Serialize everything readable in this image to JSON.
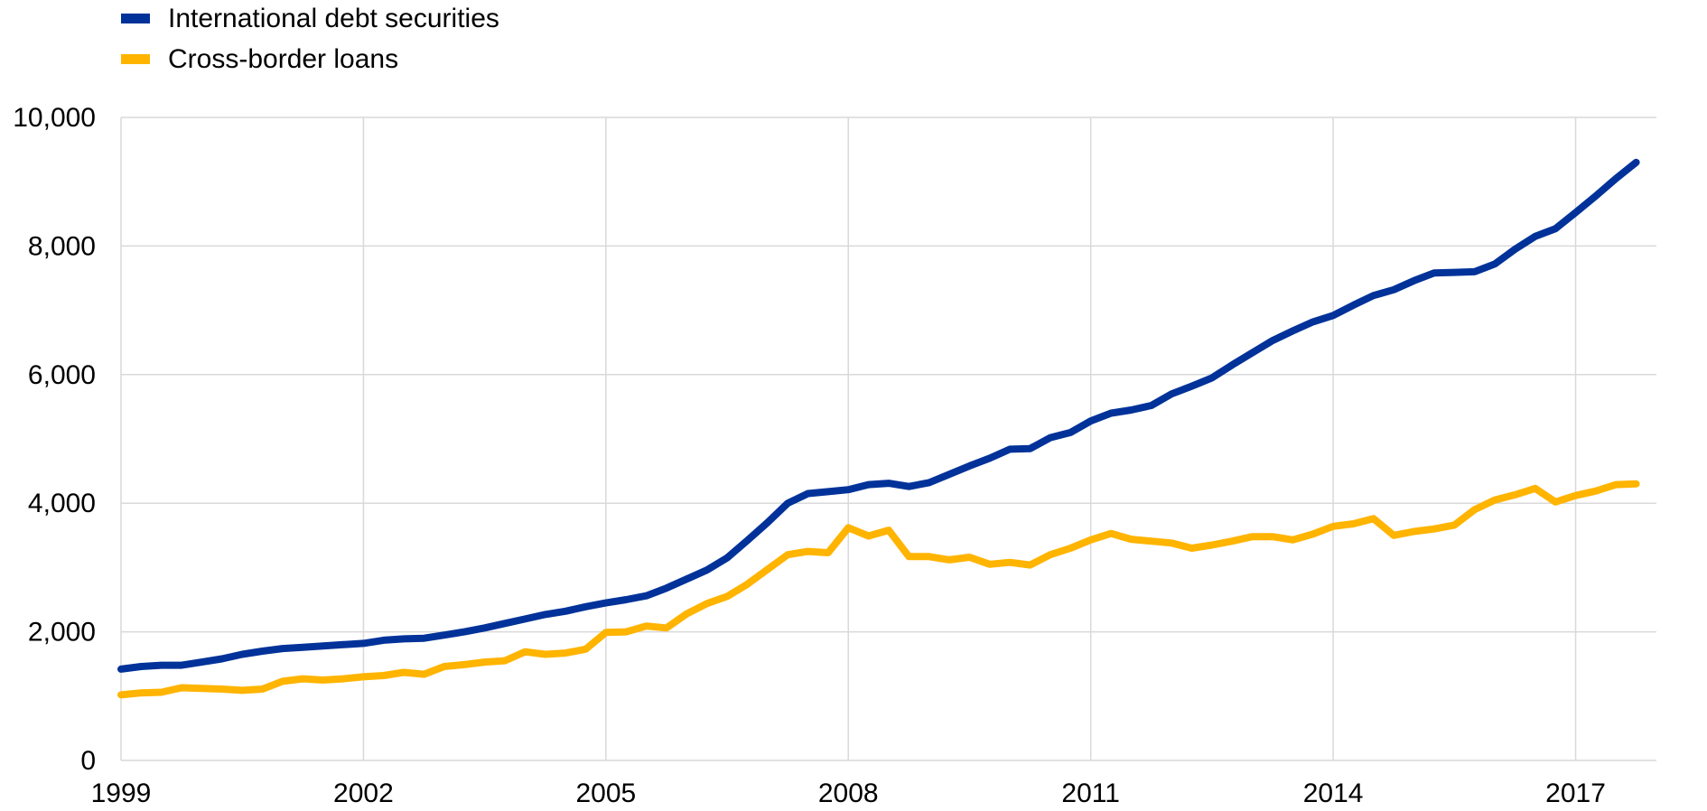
{
  "chart_data": {
    "type": "line",
    "title": "",
    "xlabel": "",
    "ylabel": "",
    "ylim": [
      0,
      10000
    ],
    "xlim": [
      1999,
      2018
    ],
    "yticks": [
      {
        "value": 0,
        "label": "0"
      },
      {
        "value": 2000,
        "label": "2,000"
      },
      {
        "value": 4000,
        "label": "4,000"
      },
      {
        "value": 6000,
        "label": "6,000"
      },
      {
        "value": 8000,
        "label": "8,000"
      },
      {
        "value": 10000,
        "label": "10,000"
      }
    ],
    "xticks": [
      {
        "value": 1999,
        "label": "1999"
      },
      {
        "value": 2002,
        "label": "2002"
      },
      {
        "value": 2005,
        "label": "2005"
      },
      {
        "value": 2008,
        "label": "2008"
      },
      {
        "value": 2011,
        "label": "2011"
      },
      {
        "value": 2014,
        "label": "2014"
      },
      {
        "value": 2017,
        "label": "2017"
      }
    ],
    "grid": true,
    "legend_position": "top-left",
    "x": [
      1999.0,
      1999.25,
      1999.5,
      1999.75,
      2000.0,
      2000.25,
      2000.5,
      2000.75,
      2001.0,
      2001.25,
      2001.5,
      2001.75,
      2002.0,
      2002.25,
      2002.5,
      2002.75,
      2003.0,
      2003.25,
      2003.5,
      2003.75,
      2004.0,
      2004.25,
      2004.5,
      2004.75,
      2005.0,
      2005.25,
      2005.5,
      2005.75,
      2006.0,
      2006.25,
      2006.5,
      2006.75,
      2007.0,
      2007.25,
      2007.5,
      2007.75,
      2008.0,
      2008.25,
      2008.5,
      2008.75,
      2009.0,
      2009.25,
      2009.5,
      2009.75,
      2010.0,
      2010.25,
      2010.5,
      2010.75,
      2011.0,
      2011.25,
      2011.5,
      2011.75,
      2012.0,
      2012.25,
      2012.5,
      2012.75,
      2013.0,
      2013.25,
      2013.5,
      2013.75,
      2014.0,
      2014.25,
      2014.5,
      2014.75,
      2015.0,
      2015.25,
      2015.5,
      2015.75,
      2016.0,
      2016.25,
      2016.5,
      2016.75,
      2017.0,
      2017.25,
      2017.5,
      2017.75
    ],
    "series": [
      {
        "name": "International debt securities",
        "color": "#003299",
        "values": [
          1420,
          1460,
          1480,
          1480,
          1530,
          1580,
          1650,
          1700,
          1740,
          1760,
          1780,
          1800,
          1820,
          1870,
          1890,
          1900,
          1950,
          2000,
          2060,
          2130,
          2200,
          2270,
          2320,
          2390,
          2450,
          2500,
          2560,
          2680,
          2820,
          2960,
          3150,
          3420,
          3700,
          4000,
          4150,
          4180,
          4210,
          4290,
          4310,
          4260,
          4320,
          4450,
          4580,
          4700,
          4840,
          4850,
          5020,
          5100,
          5280,
          5400,
          5450,
          5520,
          5700,
          5820,
          5950,
          6150,
          6340,
          6530,
          6680,
          6820,
          6920,
          7080,
          7230,
          7320,
          7460,
          7580,
          7590,
          7600,
          7720,
          7950,
          8150,
          8270,
          8520,
          8780,
          9050,
          9300
        ]
      },
      {
        "name": "Cross-border loans",
        "color": "#FFB400",
        "values": [
          1020,
          1050,
          1060,
          1130,
          1120,
          1110,
          1090,
          1110,
          1230,
          1270,
          1250,
          1270,
          1300,
          1320,
          1370,
          1340,
          1460,
          1490,
          1530,
          1550,
          1690,
          1650,
          1670,
          1730,
          1990,
          2000,
          2090,
          2060,
          2280,
          2440,
          2550,
          2740,
          2970,
          3200,
          3250,
          3230,
          3620,
          3490,
          3580,
          3170,
          3170,
          3120,
          3160,
          3050,
          3080,
          3040,
          3200,
          3300,
          3430,
          3530,
          3440,
          3410,
          3380,
          3300,
          3350,
          3410,
          3480,
          3480,
          3430,
          3520,
          3640,
          3680,
          3760,
          3500,
          3560,
          3600,
          3660,
          3900,
          4050,
          4130,
          4230,
          4020,
          4120,
          4190,
          4290,
          4300
        ]
      }
    ]
  }
}
